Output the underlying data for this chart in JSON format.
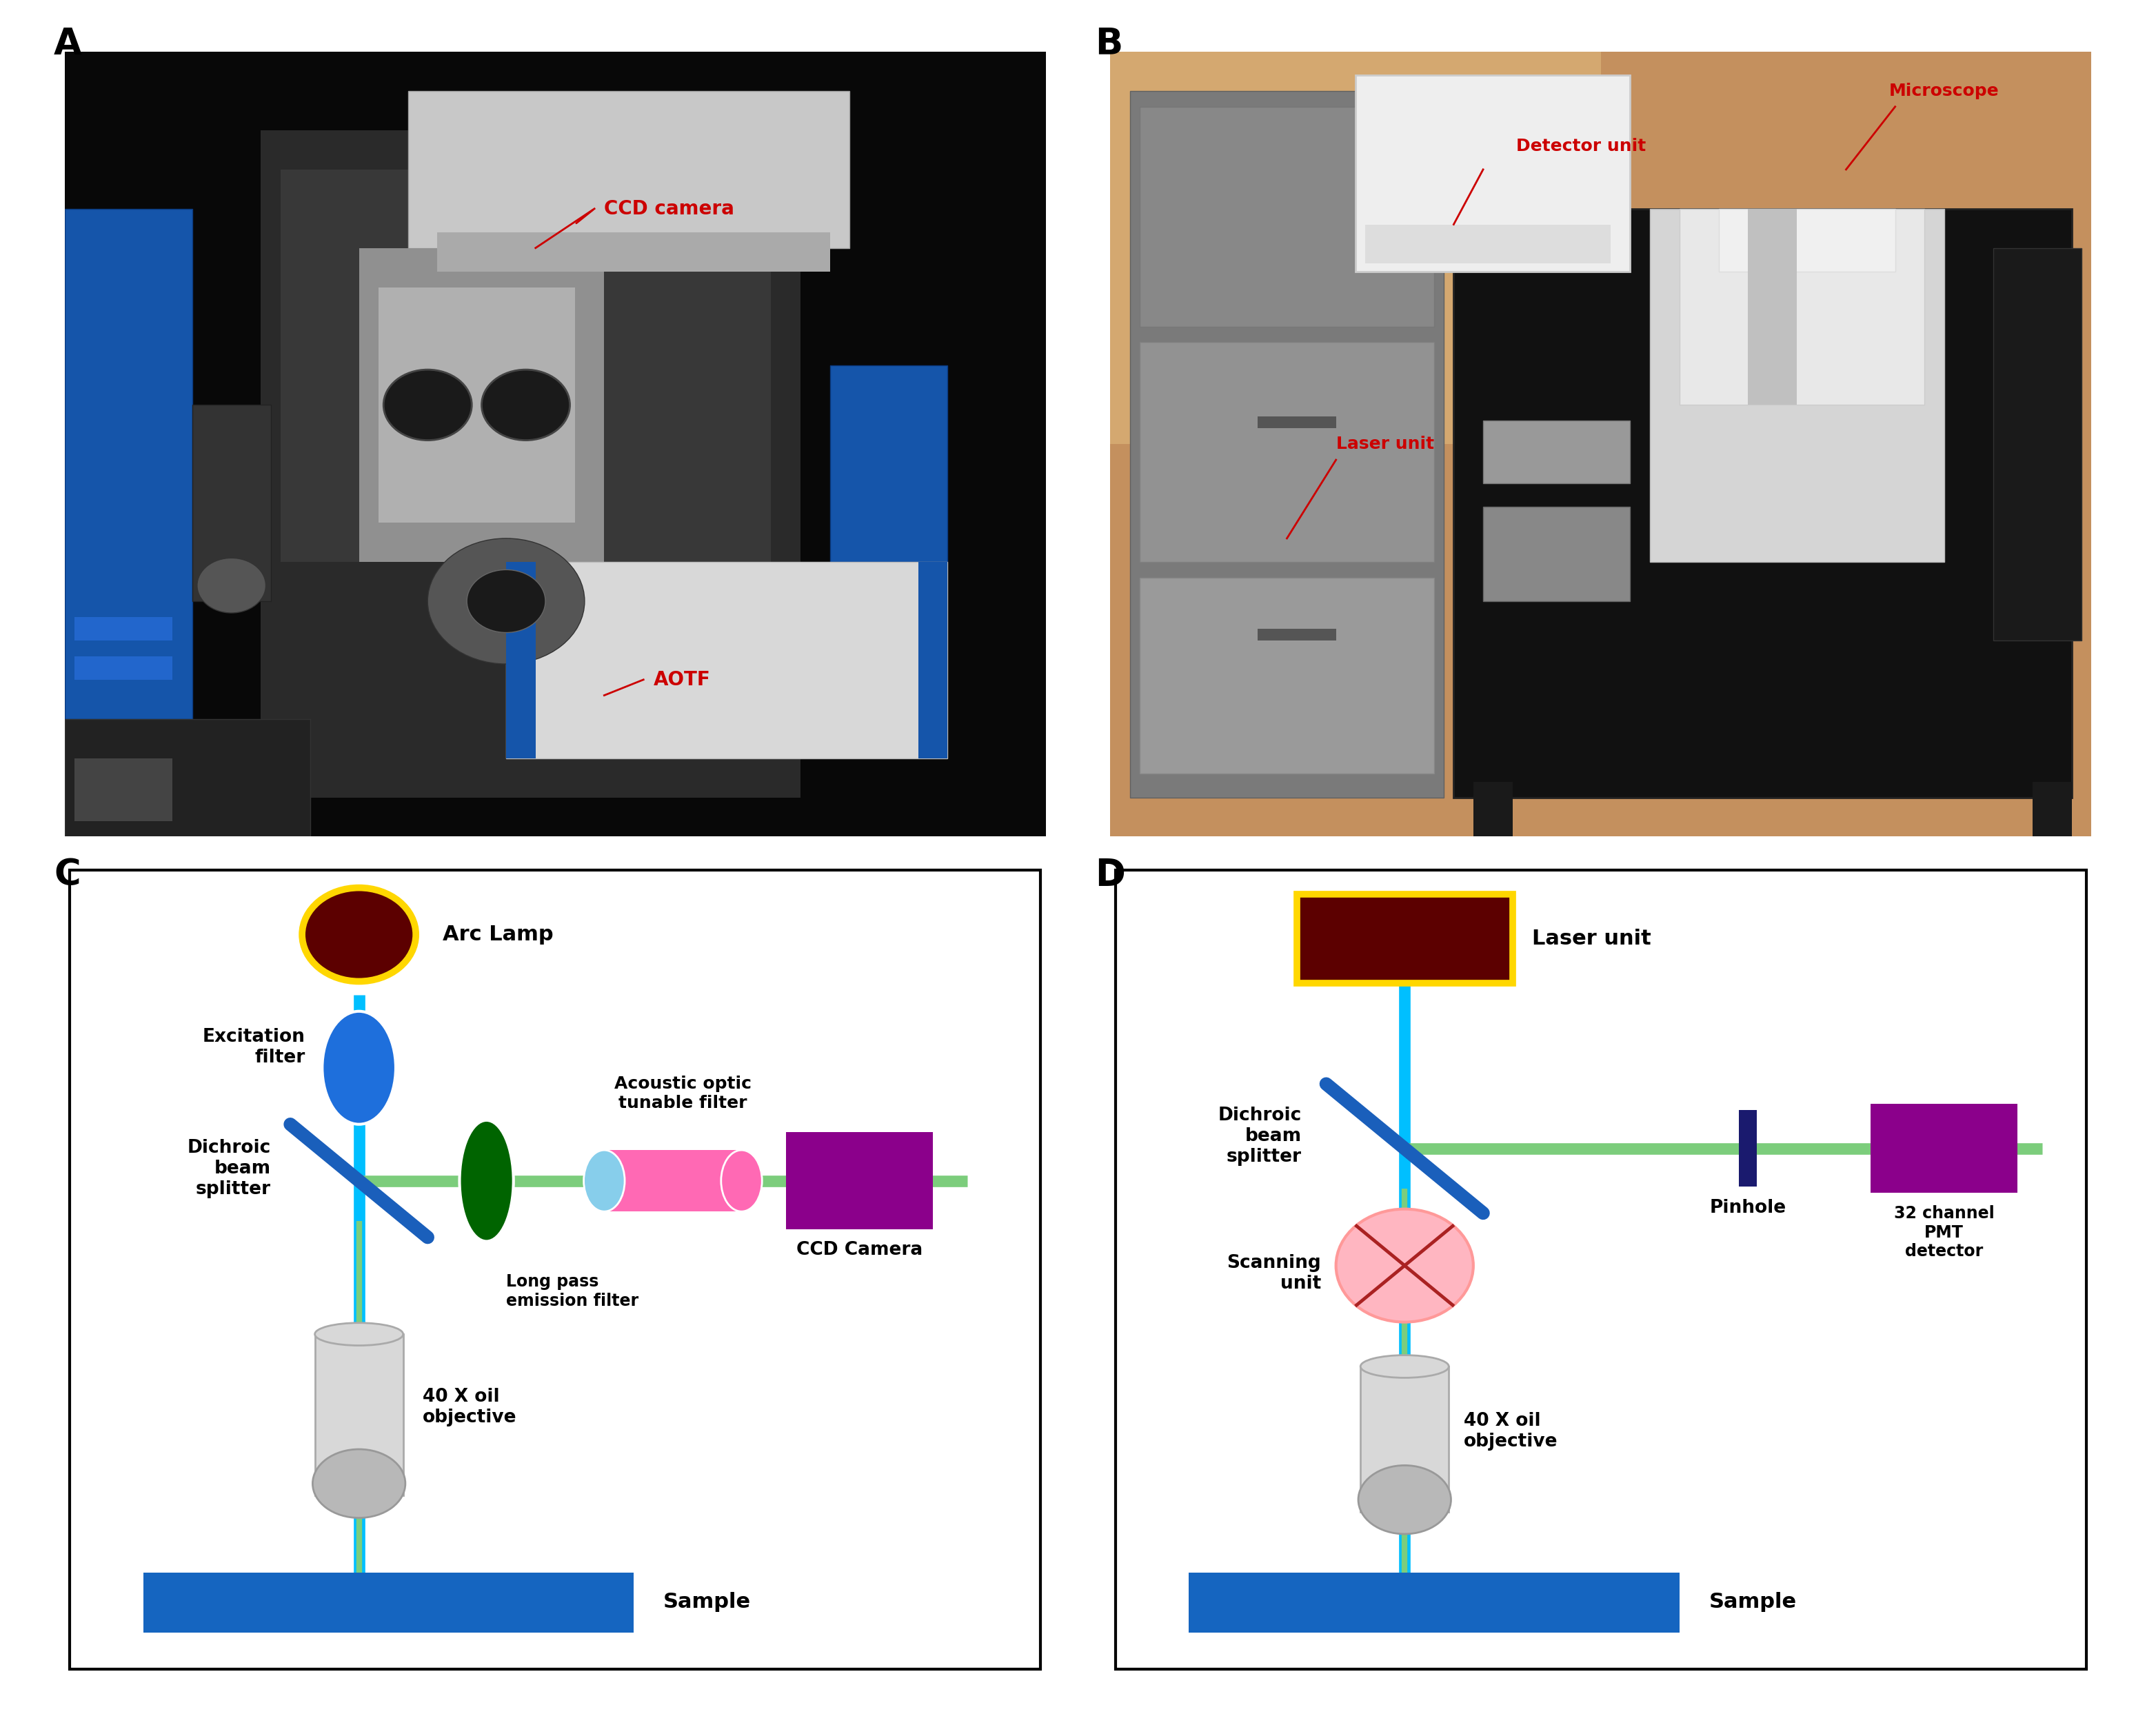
{
  "panel_label_fontsize": 38,
  "panel_label_fontweight": "bold",
  "background_color": "#ffffff",
  "colors": {
    "arc_lamp_face": "#5C0000",
    "arc_lamp_edge": "#FFD700",
    "laser_unit_face": "#5C0000",
    "laser_unit_edge": "#FFD700",
    "excitation_filter": "#1E6FDC",
    "dichroic_splitter": "#1A5FBB",
    "long_pass_filter": "#006400",
    "aotf_body": "#FF69B4",
    "aotf_cap": "#87CEEB",
    "ccd_camera_purple": "#8B008B",
    "pmt_detector_purple": "#8B008B",
    "sample_blue": "#1565C0",
    "beam_cyan": "#00BFFF",
    "emission_green": "#7CCD7C",
    "objective_body": "#D8D8D8",
    "objective_lens": "#B8B8B8",
    "scanning_face": "#FFB6C1",
    "scanning_edge": "#FF9999",
    "scanning_cross": "#AA2222",
    "pinhole_color": "#1A1A6E",
    "annotation_red": "#CC0000",
    "photo_A_bg": "#0A0A0A",
    "photo_B_bg": "#B8936A"
  },
  "text": {
    "arc_lamp": "Arc Lamp",
    "laser_unit": "Laser unit",
    "excitation_filter": "Excitation\nfilter",
    "dichroic": "Dichroic\nbeam\nsplitter",
    "long_pass": "Long pass\nemission filter",
    "aotf": "Acoustic optic\ntunable filter",
    "ccd": "CCD Camera",
    "objective_C": "40 X oil\nobjective",
    "objective_D": "40 X oil\nobjective",
    "sample_C": "Sample",
    "sample_D": "Sample",
    "pinhole": "Pinhole",
    "pmt": "32 channel\nPMT\ndetector",
    "scanning": "Scanning\nunit",
    "ccd_camera_A": "CCD camera",
    "aotf_A": "AOTF",
    "detector_B": "Detector unit",
    "laser_B": "Laser unit",
    "microscope_B": "Microscope"
  }
}
